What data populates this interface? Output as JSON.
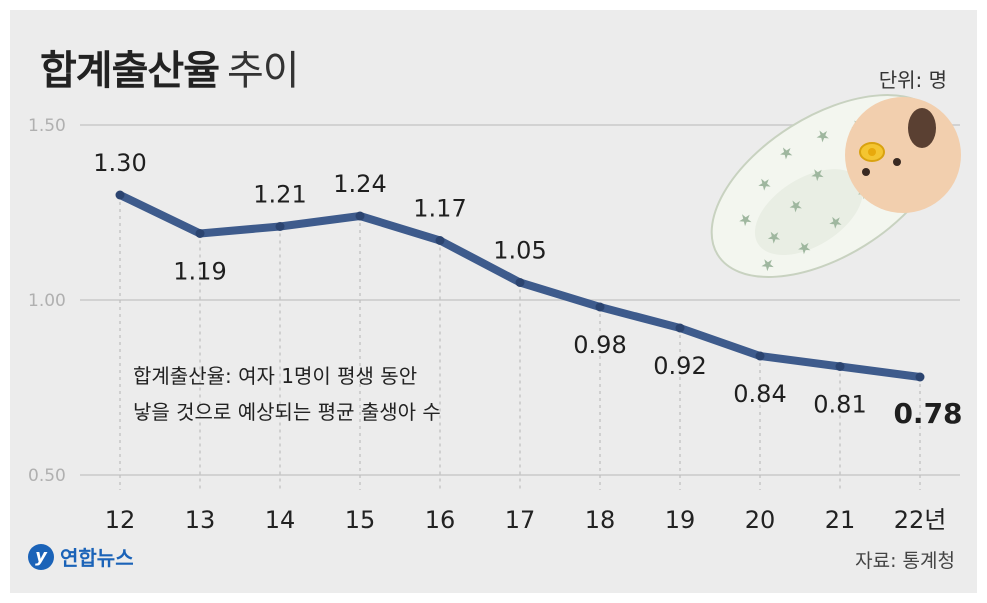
{
  "chart_data": {
    "type": "line",
    "title": "합계출산율",
    "subtitle": "추이",
    "unit_label": "단위: 명",
    "categories": [
      "12",
      "13",
      "14",
      "15",
      "16",
      "17",
      "18",
      "19",
      "20",
      "21",
      "22년"
    ],
    "values": [
      1.3,
      1.19,
      1.21,
      1.24,
      1.17,
      1.05,
      0.98,
      0.92,
      0.84,
      0.81,
      0.78
    ],
    "value_labels": [
      "1.30",
      "1.19",
      "1.21",
      "1.24",
      "1.17",
      "1.05",
      "0.98",
      "0.92",
      "0.84",
      "0.81",
      "0.78"
    ],
    "y_ticks": [
      "1.50",
      "1.00",
      "0.50"
    ],
    "ylim": [
      0.5,
      1.5
    ],
    "grid": true,
    "colors": {
      "line": "#3e5b8c",
      "grid": "#c9c9c9"
    },
    "annotation": [
      "합계출산율: 여자 1명이 평생 동안",
      "낳을 것으로 예상되는 평균 출생아 수"
    ]
  },
  "footer": {
    "logo_text": "연합뉴스",
    "source": "자료: 통계청"
  }
}
